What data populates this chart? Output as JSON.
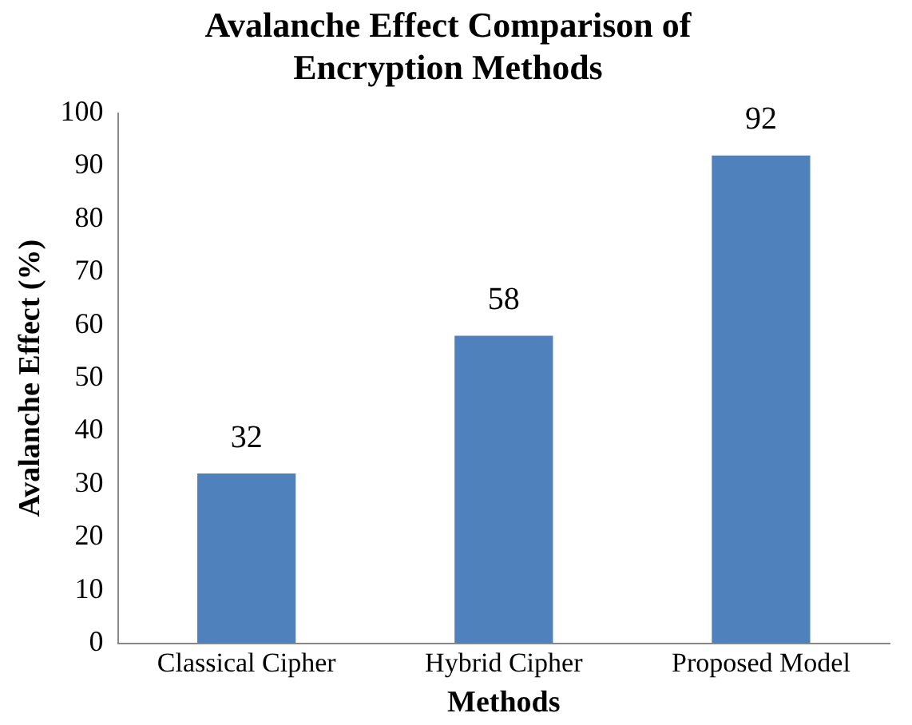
{
  "chart_data": {
    "type": "bar",
    "title": "Avalanche Effect Comparison of Encryption Methods",
    "xlabel": "Methods",
    "ylabel": "Avalanche Effect (%)",
    "categories": [
      "Classical Cipher",
      "Hybrid Cipher",
      "Proposed Model"
    ],
    "values": [
      32,
      58,
      92
    ],
    "color": "#4f81bd",
    "ylim": [
      0,
      100
    ],
    "yticks": [
      0,
      10,
      20,
      30,
      40,
      50,
      60,
      70,
      80,
      90,
      100
    ],
    "grid": false,
    "legend": false,
    "data_labels": true
  }
}
